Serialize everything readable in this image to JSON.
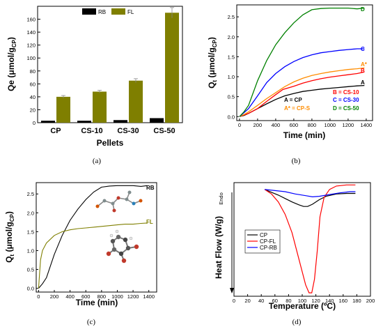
{
  "chart_data": [
    {
      "panel": "(a)",
      "type": "bar",
      "categories": [
        "CP",
        "CS-10",
        "CS-30",
        "CS-50"
      ],
      "series": [
        {
          "name": "RB",
          "color": "#000000",
          "values": [
            3,
            3,
            4,
            7
          ]
        },
        {
          "name": "FL",
          "color": "#7f7f00",
          "values": [
            40,
            48,
            65,
            170
          ]
        }
      ],
      "error_bars": {
        "FL": [
          2,
          2,
          3,
          8
        ]
      },
      "xlabel": "Pellets",
      "ylabel": "Qe (μmol/g",
      "ylabel_sub": "CP",
      "ylabel_tail": ")",
      "ylim": [
        0,
        180
      ],
      "yticks": [
        "0",
        "20",
        "40",
        "60",
        "80",
        "100",
        "120",
        "140",
        "160"
      ],
      "legend": "top"
    },
    {
      "panel": "(b)",
      "type": "line",
      "xlabel": "Time (min)",
      "ylabel": "Q",
      "ylabel_sub": "t",
      "ylabel_tail": " (μmol/g",
      "ylabel_sub2": "CP",
      "ylabel_tail2": ")",
      "xlim": [
        -30,
        1470
      ],
      "ylim": [
        -0.1,
        2.8
      ],
      "xticks": [
        "0",
        "200",
        "400",
        "600",
        "800",
        "1000",
        "1200",
        "1400"
      ],
      "yticks": [
        "0.0",
        "0.5",
        "1.0",
        "1.5",
        "2.0",
        "2.5"
      ],
      "series": [
        {
          "label": "A",
          "color": "#000000",
          "points": [
            [
              0,
              0
            ],
            [
              50,
              0.03
            ],
            [
              100,
              0.08
            ],
            [
              200,
              0.2
            ],
            [
              300,
              0.32
            ],
            [
              400,
              0.43
            ],
            [
              500,
              0.52
            ],
            [
              600,
              0.58
            ],
            [
              700,
              0.63
            ],
            [
              800,
              0.66
            ],
            [
              900,
              0.69
            ],
            [
              1000,
              0.71
            ],
            [
              1100,
              0.73
            ],
            [
              1200,
              0.75
            ],
            [
              1300,
              0.77
            ],
            [
              1380,
              0.78
            ]
          ]
        },
        {
          "label": "B",
          "color": "#ff0000",
          "points": [
            [
              0,
              0
            ],
            [
              50,
              0.04
            ],
            [
              100,
              0.08
            ],
            [
              200,
              0.2
            ],
            [
              300,
              0.38
            ],
            [
              400,
              0.55
            ],
            [
              480,
              0.68
            ],
            [
              600,
              0.76
            ],
            [
              700,
              0.84
            ],
            [
              800,
              0.9
            ],
            [
              900,
              0.95
            ],
            [
              1000,
              0.99
            ],
            [
              1100,
              1.02
            ],
            [
              1200,
              1.05
            ],
            [
              1300,
              1.08
            ],
            [
              1380,
              1.12
            ]
          ]
        },
        {
          "label": "A*",
          "color": "#ff8c00",
          "points": [
            [
              0,
              0
            ],
            [
              50,
              0.05
            ],
            [
              100,
              0.12
            ],
            [
              200,
              0.28
            ],
            [
              300,
              0.45
            ],
            [
              400,
              0.6
            ],
            [
              500,
              0.75
            ],
            [
              600,
              0.87
            ],
            [
              700,
              0.96
            ],
            [
              800,
              1.03
            ],
            [
              900,
              1.08
            ],
            [
              1000,
              1.12
            ],
            [
              1100,
              1.15
            ],
            [
              1200,
              1.18
            ],
            [
              1300,
              1.2
            ],
            [
              1380,
              1.22
            ]
          ]
        },
        {
          "label": "C",
          "color": "#0000ff",
          "points": [
            [
              0,
              0
            ],
            [
              50,
              0.1
            ],
            [
              100,
              0.2
            ],
            [
              200,
              0.52
            ],
            [
              300,
              0.85
            ],
            [
              400,
              1.08
            ],
            [
              500,
              1.25
            ],
            [
              600,
              1.38
            ],
            [
              700,
              1.48
            ],
            [
              800,
              1.55
            ],
            [
              900,
              1.6
            ],
            [
              1000,
              1.63
            ],
            [
              1100,
              1.66
            ],
            [
              1200,
              1.68
            ],
            [
              1300,
              1.7
            ],
            [
              1380,
              1.7
            ]
          ]
        },
        {
          "label": "D",
          "color": "#008000",
          "points": [
            [
              0,
              0
            ],
            [
              50,
              0.12
            ],
            [
              100,
              0.28
            ],
            [
              200,
              0.9
            ],
            [
              300,
              1.4
            ],
            [
              400,
              1.8
            ],
            [
              500,
              2.1
            ],
            [
              600,
              2.35
            ],
            [
              700,
              2.55
            ],
            [
              800,
              2.68
            ],
            [
              900,
              2.71
            ],
            [
              1000,
              2.72
            ],
            [
              1100,
              2.72
            ],
            [
              1200,
              2.72
            ],
            [
              1300,
              2.7
            ],
            [
              1380,
              2.72
            ]
          ]
        }
      ],
      "key": [
        {
          "text": "A = CP",
          "color": "#000000"
        },
        {
          "text": "A* = CP-S",
          "color": "#ff8c00"
        },
        {
          "text": "B = CS-10",
          "color": "#ff0000"
        },
        {
          "text": "C = CS-30",
          "color": "#0000ff"
        },
        {
          "text": "D = CS-50",
          "color": "#008000"
        }
      ]
    },
    {
      "panel": "(c)",
      "type": "line",
      "xlabel": "Time (min)",
      "ylabel": "Q",
      "ylabel_sub": "t",
      "ylabel_tail": " (μmol/g",
      "ylabel_sub2": "CP",
      "ylabel_tail2": ")",
      "xlim": [
        -30,
        1500
      ],
      "ylim": [
        -0.1,
        2.8
      ],
      "xticks": [
        "0",
        "200",
        "400",
        "600",
        "800",
        "1000",
        "1200",
        "1400"
      ],
      "yticks": [
        "0.0",
        "0.5",
        "1.0",
        "1.5",
        "2.0",
        "2.5"
      ],
      "series": [
        {
          "label": "RB",
          "color": "#000000",
          "points": [
            [
              0,
              0
            ],
            [
              50,
              0.12
            ],
            [
              100,
              0.28
            ],
            [
              200,
              0.9
            ],
            [
              300,
              1.4
            ],
            [
              400,
              1.8
            ],
            [
              500,
              2.1
            ],
            [
              600,
              2.35
            ],
            [
              700,
              2.55
            ],
            [
              800,
              2.68
            ],
            [
              900,
              2.71
            ],
            [
              1000,
              2.72
            ],
            [
              1100,
              2.72
            ],
            [
              1200,
              2.72
            ],
            [
              1300,
              2.7
            ],
            [
              1380,
              2.72
            ]
          ]
        },
        {
          "label": "FL",
          "color": "#7f7f00",
          "points": [
            [
              0,
              0
            ],
            [
              10,
              0.3
            ],
            [
              25,
              0.75
            ],
            [
              50,
              1.0
            ],
            [
              100,
              1.2
            ],
            [
              200,
              1.4
            ],
            [
              300,
              1.5
            ],
            [
              400,
              1.55
            ],
            [
              500,
              1.58
            ],
            [
              600,
              1.6
            ],
            [
              700,
              1.62
            ],
            [
              800,
              1.64
            ],
            [
              900,
              1.66
            ],
            [
              1000,
              1.68
            ],
            [
              1100,
              1.7
            ],
            [
              1200,
              1.7
            ],
            [
              1300,
              1.72
            ],
            [
              1380,
              1.73
            ]
          ]
        }
      ]
    },
    {
      "panel": "(d)",
      "type": "line",
      "xlabel": "Temperature (ºC)",
      "ylabel": "Heat Flow (W/g)",
      "endo_label": "Endo",
      "endo_sub": "Endo",
      "xlim": [
        0,
        200
      ],
      "ylim": [
        0,
        1
      ],
      "xticks": [
        "0",
        "20",
        "40",
        "60",
        "80",
        "100",
        "120",
        "140",
        "160",
        "180",
        "200"
      ],
      "series": [
        {
          "name": "CP",
          "color": "#000000",
          "points": [
            [
              45,
              0.94
            ],
            [
              55,
              0.915
            ],
            [
              65,
              0.89
            ],
            [
              75,
              0.86
            ],
            [
              85,
              0.83
            ],
            [
              95,
              0.805
            ],
            [
              102,
              0.79
            ],
            [
              108,
              0.79
            ],
            [
              115,
              0.81
            ],
            [
              125,
              0.85
            ],
            [
              135,
              0.88
            ],
            [
              150,
              0.9
            ],
            [
              165,
              0.905
            ],
            [
              178,
              0.905
            ]
          ]
        },
        {
          "name": "CP-FL",
          "color": "#ff0000",
          "points": [
            [
              45,
              0.94
            ],
            [
              55,
              0.9
            ],
            [
              65,
              0.83
            ],
            [
              75,
              0.72
            ],
            [
              85,
              0.56
            ],
            [
              95,
              0.33
            ],
            [
              105,
              0.1
            ],
            [
              110,
              0.03
            ],
            [
              114,
              0.03
            ],
            [
              118,
              0.15
            ],
            [
              122,
              0.4
            ],
            [
              126,
              0.7
            ],
            [
              132,
              0.87
            ],
            [
              140,
              0.94
            ],
            [
              150,
              0.97
            ],
            [
              165,
              0.98
            ],
            [
              178,
              0.98
            ]
          ]
        },
        {
          "name": "CP-RB",
          "color": "#0000ff",
          "points": [
            [
              45,
              0.94
            ],
            [
              60,
              0.93
            ],
            [
              75,
              0.92
            ],
            [
              90,
              0.9
            ],
            [
              105,
              0.885
            ],
            [
              115,
              0.875
            ],
            [
              125,
              0.88
            ],
            [
              140,
              0.895
            ],
            [
              155,
              0.91
            ],
            [
              170,
              0.92
            ],
            [
              178,
              0.92
            ]
          ]
        }
      ],
      "legend": "lower-left"
    }
  ],
  "captions": [
    "(a)",
    "(b)",
    "(c)",
    "(d)"
  ],
  "insets": [
    {
      "desc": "RB molecule",
      "icon": "molecule-icon"
    },
    {
      "desc": "FL molecule",
      "icon": "molecule-icon"
    }
  ]
}
